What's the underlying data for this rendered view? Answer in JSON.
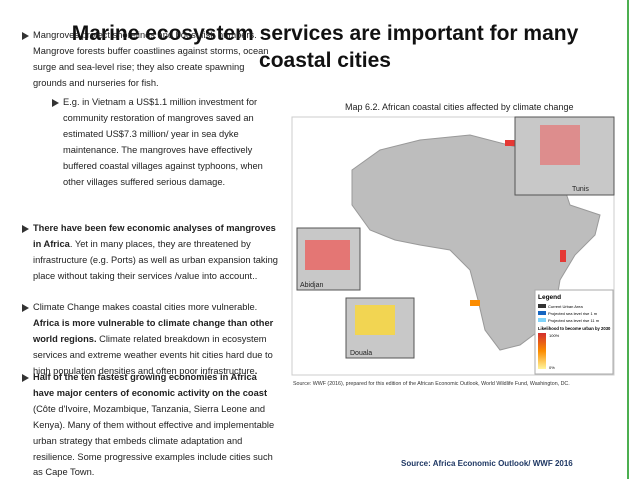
{
  "title": [
    "Marine ecosystem services are important for many",
    "coastal cities"
  ],
  "bullets": [
    {
      "level": 1,
      "runs": [
        {
          "text": "Mangroves protect shorelines and boost fish numbers. Mangrove forests buffer coastlines against storms, ocean surge and sea-level rise; they also create spawning grounds and nurseries for fish.",
          "bold": false
        }
      ]
    },
    {
      "level": 2,
      "runs": [
        {
          "text": "E.g. in Vietnam a US$1.1 million investment for community restoration of mangroves saved an estimated US$7.3 million/ year in sea dyke maintenance. The mangroves have effectively buffered coastal villages against typhoons, when other villages suffered serious damage.",
          "bold": false
        }
      ]
    },
    {
      "level": 1,
      "runs": [
        {
          "text": "There have been few economic analyses of mangroves in Africa",
          "bold": true
        },
        {
          "text": ". Yet in many places, they are threatened by infrastructure (e.g. Ports)  as well as urban expansion taking place without taking their services /value into account..",
          "bold": false
        }
      ]
    },
    {
      "level": 1,
      "runs": [
        {
          "text": "Climate Change makes coastal cities more vulnerable. ",
          "bold": false
        },
        {
          "text": "Africa is more vulnerable to climate change than other world regions.",
          "bold": true
        },
        {
          "text": " Climate related breakdown in ecosystem services and extreme weather events hit cities hard due to high population densities and often poor infrastructure",
          "bold": false
        },
        {
          "text": ".",
          "bold": true
        }
      ]
    },
    {
      "level": 1,
      "runs": [
        {
          "text": "Half of the ten fastest growing economies in Africa have major centers of economic activity on the coast",
          "bold": true
        },
        {
          "text": " (Côte d'Ivoire, Mozambique, Tanzania, Sierra Leone and Kenya). Many of them without effective and implementable urban strategy that embeds climate adaptation and resilience. Some progressive examples include cities such as Cape Town.",
          "bold": false
        }
      ]
    }
  ],
  "map": {
    "caption": "Map 6.2. African coastal cities affected by climate change",
    "cities": [
      "Tunis",
      "Abidjan",
      "Douala"
    ],
    "legend": {
      "title": "Legend",
      "items": [
        "Current Urban Area",
        "Projected sea level rise 1 m",
        "Projected sea level rise 11 m"
      ],
      "scale_title": "Likelihood to become urban by 2030",
      "scale_max": "100%",
      "scale_min": "0%"
    },
    "source": "Source: WWF (2016), prepared for this edition of the African Economic Outlook, World Wildlife Fund, Washington, DC."
  },
  "footer": "Source: Africa Economic Outlook/ WWF 2016"
}
